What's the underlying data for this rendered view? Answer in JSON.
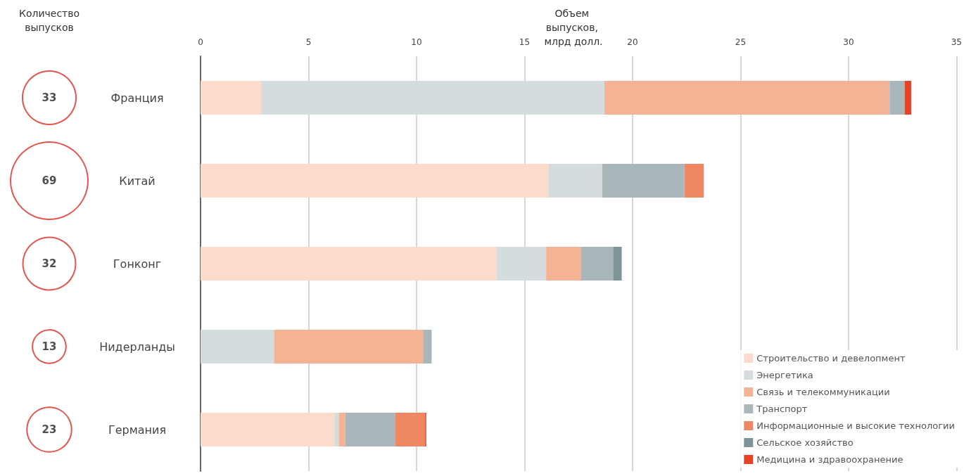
{
  "chart_data": [
    {
      "type": "other",
      "title": "Количество выпусков",
      "categories": [
        null,
        null,
        null,
        null,
        null
      ],
      "values": [
        33,
        69,
        32,
        13,
        23
      ],
      "data_labels": true
    },
    {
      "type": "bar",
      "orientation": "horizontal",
      "stacked": true,
      "title": "Объем выпусков, млрд долл.",
      "categories": [
        "Франция",
        "Китай",
        "Гонконг",
        "Нидерланды",
        "Германия"
      ],
      "xlim": [
        0,
        35
      ],
      "xticks": [
        0,
        5,
        10,
        15,
        20,
        25,
        30,
        35
      ],
      "grid": "x",
      "legend": "bottom right",
      "series": [
        {
          "name": "Строительство и девелопмент",
          "color": "#fbdbcc",
          "values": [
            2.8,
            16.1,
            13.7,
            0,
            6.2
          ]
        },
        {
          "name": "Энергетика",
          "color": "#d5dcdd",
          "values": [
            15.9,
            2.5,
            2.3,
            3.4,
            0.2
          ]
        },
        {
          "name": "Связь и телекоммуникации",
          "color": "#f5b396",
          "values": [
            13.2,
            0,
            1.6,
            6.9,
            0.3
          ]
        },
        {
          "name": "Транспорт",
          "color": "#a9b7bb",
          "values": [
            0.7,
            3.8,
            1.5,
            0.4,
            2.3
          ]
        },
        {
          "name": "Информационные и высокие технологии",
          "color": "#ef8762",
          "values": [
            0,
            0.9,
            0,
            0,
            1.4
          ]
        },
        {
          "name": "Сельское хозяйство",
          "color": "#7f9499",
          "values": [
            0,
            0,
            0.4,
            0,
            0
          ]
        },
        {
          "name": "Медицина и здравоохранение",
          "color": "#e8412a",
          "values": [
            0.3,
            0,
            0,
            0,
            0.05
          ]
        }
      ]
    }
  ]
}
